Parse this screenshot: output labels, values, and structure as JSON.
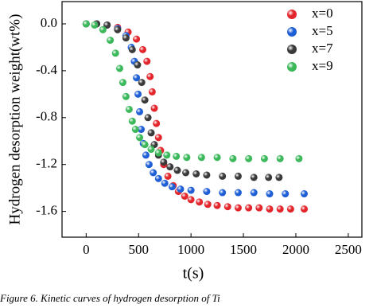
{
  "chart_data": {
    "type": "scatter",
    "x_label": "t(s)",
    "y_label": "Hydrogen desorption weight(wt%)",
    "caption": "Figure 6. Kinetic curves of hydrogen desorption of Ti",
    "xlim": [
      -230,
      2630
    ],
    "ylim": [
      -1.82,
      0.19
    ],
    "xticks": [
      0,
      500,
      1000,
      1500,
      2000,
      2500
    ],
    "yticks": [
      {
        "value": 0,
        "label": "0.0"
      },
      -0.4,
      -0.8,
      -1.2,
      -1.6
    ],
    "legend": "top-right",
    "series": [
      {
        "name": "x=0",
        "color": "#e3262c",
        "x": [
          0,
          100,
          200,
          300,
          400,
          480,
          540,
          580,
          610,
          630,
          650,
          670,
          690,
          710,
          740,
          780,
          830,
          880,
          940,
          1000,
          1080,
          1160,
          1250,
          1350,
          1450,
          1550,
          1650,
          1750,
          1850,
          1950,
          2080
        ],
        "values": [
          0,
          0,
          -0.01,
          -0.03,
          -0.07,
          -0.13,
          -0.22,
          -0.32,
          -0.45,
          -0.58,
          -0.72,
          -0.85,
          -0.97,
          -1.08,
          -1.2,
          -1.3,
          -1.38,
          -1.43,
          -1.47,
          -1.5,
          -1.52,
          -1.54,
          -1.55,
          -1.56,
          -1.57,
          -1.57,
          -1.57,
          -1.58,
          -1.58,
          -1.58,
          -1.58
        ]
      },
      {
        "name": "x=5",
        "color": "#1f5fd6",
        "x": [
          0,
          100,
          200,
          300,
          380,
          430,
          460,
          480,
          495,
          510,
          525,
          545,
          570,
          600,
          640,
          690,
          750,
          820,
          900,
          1000,
          1150,
          1300,
          1450,
          1600,
          1750,
          1900,
          2080
        ],
        "values": [
          0,
          0,
          -0.01,
          -0.04,
          -0.1,
          -0.2,
          -0.32,
          -0.46,
          -0.6,
          -0.75,
          -0.9,
          -1.02,
          -1.12,
          -1.2,
          -1.27,
          -1.32,
          -1.36,
          -1.39,
          -1.41,
          -1.42,
          -1.43,
          -1.44,
          -1.44,
          -1.44,
          -1.45,
          -1.45,
          -1.45
        ]
      },
      {
        "name": "x=7",
        "color": "#3a3a3a",
        "x": [
          0,
          100,
          200,
          300,
          380,
          440,
          490,
          530,
          560,
          590,
          620,
          650,
          690,
          740,
          800,
          870,
          950,
          1050,
          1150,
          1300,
          1450,
          1600,
          1740,
          1840
        ],
        "values": [
          0,
          0,
          -0.01,
          -0.05,
          -0.12,
          -0.22,
          -0.35,
          -0.5,
          -0.65,
          -0.8,
          -0.93,
          -1.03,
          -1.12,
          -1.18,
          -1.22,
          -1.25,
          -1.27,
          -1.28,
          -1.29,
          -1.3,
          -1.3,
          -1.31,
          -1.31,
          -1.31
        ]
      },
      {
        "name": "x=9",
        "color": "#3bb85a",
        "x": [
          0,
          80,
          160,
          230,
          280,
          320,
          350,
          380,
          410,
          440,
          470,
          510,
          560,
          620,
          690,
          770,
          860,
          960,
          1100,
          1250,
          1400,
          1550,
          1700,
          1850,
          2030
        ],
        "values": [
          0,
          -0.01,
          -0.05,
          -0.14,
          -0.25,
          -0.38,
          -0.5,
          -0.62,
          -0.73,
          -0.83,
          -0.9,
          -0.97,
          -1.03,
          -1.07,
          -1.1,
          -1.12,
          -1.13,
          -1.14,
          -1.14,
          -1.14,
          -1.15,
          -1.15,
          -1.15,
          -1.15,
          -1.15
        ]
      }
    ]
  }
}
